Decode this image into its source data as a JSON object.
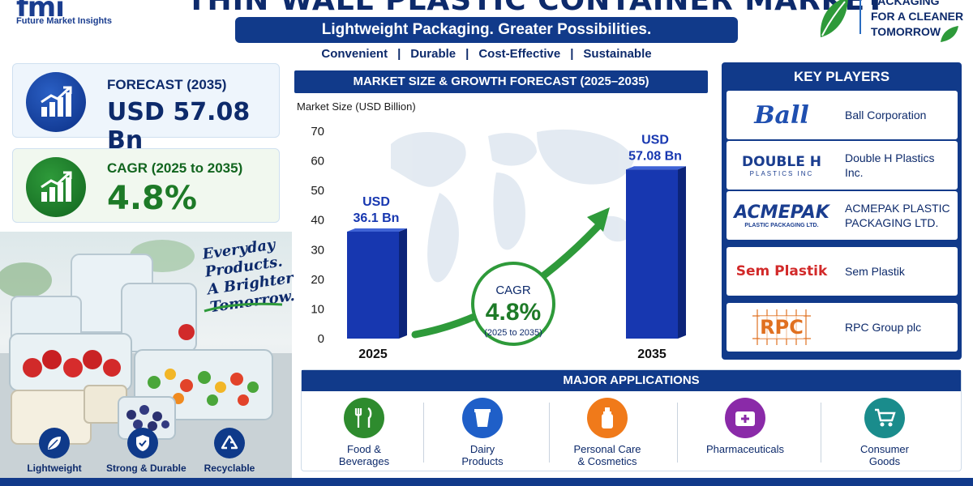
{
  "header": {
    "logo_mark": "fmi",
    "logo_text": "Future Market Insights",
    "title": "THIN WALL PLASTIC CONTAINER MARKET",
    "subtitle": "Lightweight Packaging. Greater Possibilities.",
    "tags": [
      "Convenient",
      "Durable",
      "Cost-Effective",
      "Sustainable"
    ],
    "tag_separator": "|",
    "tagline_lines": [
      "PACKAGING",
      "FOR A CLEANER",
      "TOMORROW"
    ]
  },
  "kpis": {
    "forecast": {
      "label": "FORECAST (2035)",
      "value": "USD 57.08 Bn",
      "icon": "bar-chart-growth-icon",
      "color": "#0b2f85"
    },
    "cagr": {
      "label": "CAGR (2025 to 2035)",
      "value": "4.8%",
      "icon": "bar-chart-growth-icon",
      "color": "#1d7a27"
    }
  },
  "photo": {
    "slogan_lines": [
      "Everyday",
      "Products.",
      "A Brighter",
      "Tomorrow."
    ],
    "features": [
      {
        "label": "Lightweight",
        "icon": "leaf-icon"
      },
      {
        "label": "Strong & Durable",
        "icon": "shield-check-icon"
      },
      {
        "label": "Recyclable",
        "icon": "recycle-icon"
      }
    ]
  },
  "chart_header": "MARKET SIZE & GROWTH FORECAST (2025–2035)",
  "chart_data": {
    "type": "bar",
    "ylabel": "Market Size (USD Billion)",
    "categories": [
      "2025",
      "2035"
    ],
    "values": [
      36.1,
      57.08
    ],
    "value_labels": [
      [
        "USD",
        "36.1 Bn"
      ],
      [
        "USD",
        "57.08 Bn"
      ]
    ],
    "ylim": [
      0,
      70
    ],
    "yticks": [
      0,
      10,
      20,
      30,
      40,
      50,
      60,
      70
    ],
    "annotation": {
      "title": "CAGR",
      "value": "4.8%",
      "period": "(2025 to 2035)"
    },
    "bar_color": "#1737b0",
    "arrow_color": "#2e9a3a"
  },
  "key_players": {
    "title": "KEY PLAYERS",
    "items": [
      {
        "name": "Ball Corporation",
        "logo": "Ball"
      },
      {
        "name": "Double H Plastics Inc.",
        "logo": "DOUBLE H",
        "logo_sub": "PLASTICS INC"
      },
      {
        "name": "ACMEPAK PLASTIC PACKAGING LTD.",
        "logo": "ACMEPAK",
        "logo_sub": "PLASTIC PACKAGING LTD."
      },
      {
        "name": "Sem Plastik",
        "logo": "Sem Plastik"
      },
      {
        "name": "RPC Group plc",
        "logo": "RPC"
      }
    ]
  },
  "applications": {
    "title": "MAJOR APPLICATIONS",
    "items": [
      {
        "label": [
          "Food &",
          "Beverages"
        ],
        "icon": "fork-knife-icon",
        "color": "#2e8b2e"
      },
      {
        "label": [
          "Dairy",
          "Products"
        ],
        "icon": "cup-icon",
        "color": "#1f5fc8"
      },
      {
        "label": [
          "Personal Care",
          "& Cosmetics"
        ],
        "icon": "lotion-bottle-icon",
        "color": "#f07a1a"
      },
      {
        "label": [
          "Pharmaceuticals"
        ],
        "icon": "medical-cross-icon",
        "color": "#8a2aa8"
      },
      {
        "label": [
          "Consumer",
          "Goods"
        ],
        "icon": "shopping-cart-icon",
        "color": "#1a8c8c"
      }
    ]
  }
}
